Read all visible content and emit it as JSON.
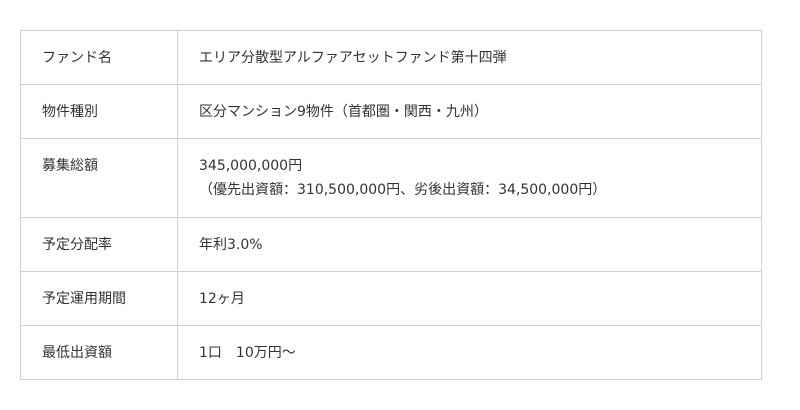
{
  "rows": [
    {
      "label": "ファンド名",
      "value": [
        "エリア分散型アルファアセットファンド第十四弾"
      ]
    },
    {
      "label": "物件種別",
      "value": [
        "区分マンション9物件（首都圏・関西・九州）"
      ]
    },
    {
      "label": "募集総額",
      "value": [
        "345,000,000円",
        "（優先出資額：310,500,000円、劣後出資額：34,500,000円）"
      ]
    },
    {
      "label": "予定分配率",
      "value": [
        "年利3.0%"
      ]
    },
    {
      "label": "予定運用期間",
      "value": [
        "12ヶ月"
      ]
    },
    {
      "label": "最低出資額",
      "value": [
        "1口　10万円〜"
      ]
    }
  ]
}
